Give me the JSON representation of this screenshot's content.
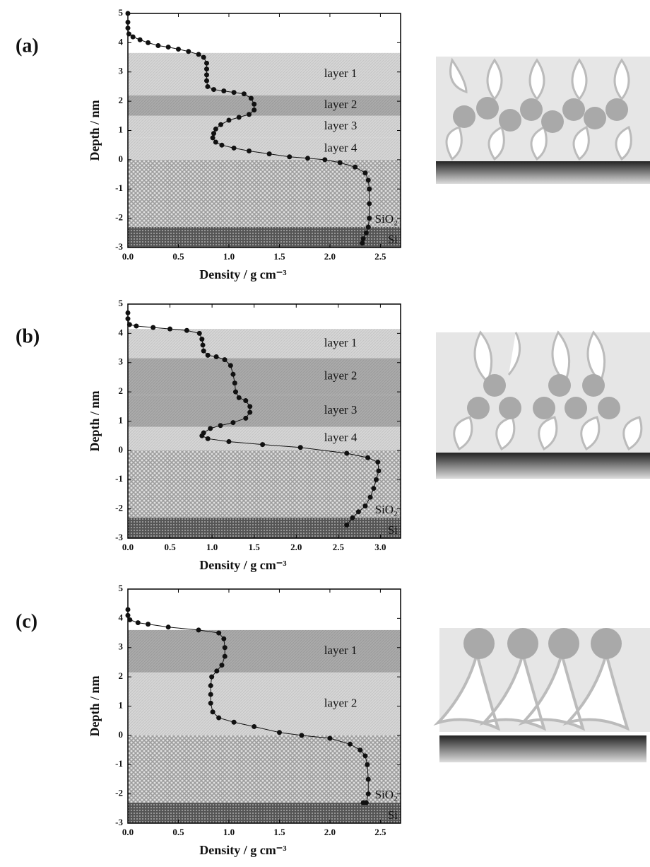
{
  "chart_data": [
    {
      "type": "line",
      "panel_label": "(a)",
      "x_label": "Density / g cm⁻³",
      "y_label": "Depth / nm",
      "xlim": [
        0,
        2.7
      ],
      "ylim": [
        -3,
        5
      ],
      "xticks": [
        {
          "value": 0,
          "label": "0.0"
        },
        0.5,
        {
          "value": 1,
          "label": "1.0"
        },
        1.5,
        {
          "value": 2,
          "label": "2.0"
        },
        2.5
      ],
      "yticks": [
        -3,
        -2,
        -1,
        0,
        1,
        2,
        3,
        4,
        5
      ],
      "regions": [
        {
          "label": "layer 1",
          "ylim": [
            2.2,
            3.65
          ],
          "fill": "light"
        },
        {
          "label": "layer 2",
          "ylim": [
            1.5,
            2.2
          ],
          "fill": "dark"
        },
        {
          "label": "layer 3",
          "ylim": [
            0.75,
            1.5
          ],
          "fill": "light"
        },
        {
          "label": "layer 4",
          "ylim": [
            0,
            0.75
          ],
          "fill": "light"
        },
        {
          "label": "SiO₂",
          "ylim": [
            -2.3,
            0
          ],
          "fill": "dots"
        },
        {
          "label": "Si",
          "ylim": [
            -3,
            -2.3
          ],
          "fill": "dense-dots"
        }
      ],
      "series": [
        {
          "color": "#111111",
          "x": [
            0,
            0,
            0,
            0.01,
            0.05,
            0.12,
            0.2,
            0.3,
            0.4,
            0.5,
            0.6,
            0.7,
            0.75,
            0.78,
            0.78,
            0.78,
            0.78,
            0.79,
            0.85,
            0.95,
            1.05,
            1.15,
            1.22,
            1.25,
            1.25,
            1.2,
            1.1,
            1.0,
            0.92,
            0.87,
            0.85,
            0.84,
            0.87,
            0.93,
            1.05,
            1.2,
            1.4,
            1.6,
            1.78,
            1.95,
            2.1,
            2.25,
            2.35,
            2.38,
            2.39,
            2.39,
            2.39,
            2.38,
            2.36,
            2.33,
            2.32
          ],
          "values": [
            5,
            4.7,
            4.5,
            4.3,
            4.2,
            4.1,
            4.0,
            3.9,
            3.85,
            3.78,
            3.7,
            3.6,
            3.5,
            3.3,
            3.1,
            2.9,
            2.7,
            2.5,
            2.4,
            2.35,
            2.3,
            2.25,
            2.1,
            1.9,
            1.7,
            1.55,
            1.45,
            1.35,
            1.2,
            1.05,
            0.9,
            0.75,
            0.6,
            0.5,
            0.4,
            0.3,
            0.2,
            0.1,
            0.05,
            0,
            -0.1,
            -0.25,
            -0.45,
            -0.7,
            -1.0,
            -1.5,
            -2.0,
            -2.3,
            -2.5,
            -2.7,
            -2.85
          ]
        }
      ]
    },
    {
      "type": "line",
      "panel_label": "(b)",
      "x_label": "Density / g cm⁻³",
      "y_label": "Depth / nm",
      "xlim": [
        0,
        3.24
      ],
      "ylim": [
        -3,
        5
      ],
      "xticks": [
        {
          "value": 0,
          "label": "0.0"
        },
        0.5,
        {
          "value": 1,
          "label": "1.0"
        },
        1.5,
        {
          "value": 2,
          "label": "2.0"
        },
        2.5,
        {
          "value": 3,
          "label": "3.0"
        }
      ],
      "yticks": [
        -3,
        -2,
        -1,
        0,
        1,
        2,
        3,
        4,
        5
      ],
      "regions": [
        {
          "label": "layer 1",
          "ylim": [
            3.15,
            4.15
          ],
          "fill": "light"
        },
        {
          "label": "layer 2",
          "ylim": [
            1.9,
            3.15
          ],
          "fill": "dark"
        },
        {
          "label": "layer 3",
          "ylim": [
            0.8,
            1.9
          ],
          "fill": "dark"
        },
        {
          "label": "layer 4",
          "ylim": [
            0,
            0.8
          ],
          "fill": "light"
        },
        {
          "label": "SiO₂",
          "ylim": [
            -2.3,
            0
          ],
          "fill": "dots"
        },
        {
          "label": "Si",
          "ylim": [
            -3,
            -2.3
          ],
          "fill": "dense-dots"
        }
      ],
      "series": [
        {
          "color": "#111111",
          "x": [
            0,
            0,
            0.02,
            0.1,
            0.3,
            0.5,
            0.7,
            0.85,
            0.88,
            0.89,
            0.9,
            0.95,
            1.05,
            1.15,
            1.22,
            1.25,
            1.27,
            1.28,
            1.32,
            1.4,
            1.45,
            1.45,
            1.4,
            1.25,
            1.1,
            0.98,
            0.9,
            0.88,
            0.95,
            1.2,
            1.6,
            2.05,
            2.6,
            2.85,
            2.97,
            2.98,
            2.95,
            2.92,
            2.88,
            2.82,
            2.74,
            2.67,
            2.6
          ],
          "values": [
            4.7,
            4.5,
            4.3,
            4.25,
            4.2,
            4.15,
            4.1,
            4.0,
            3.8,
            3.6,
            3.4,
            3.25,
            3.2,
            3.1,
            2.9,
            2.6,
            2.3,
            2.0,
            1.8,
            1.7,
            1.5,
            1.3,
            1.1,
            0.95,
            0.85,
            0.75,
            0.6,
            0.5,
            0.4,
            0.3,
            0.2,
            0.1,
            -0.1,
            -0.25,
            -0.4,
            -0.7,
            -1.0,
            -1.3,
            -1.6,
            -1.9,
            -2.1,
            -2.3,
            -2.55
          ]
        }
      ]
    },
    {
      "type": "line",
      "panel_label": "(c)",
      "x_label": "Density / g cm⁻³",
      "y_label": "Depth / nm",
      "xlim": [
        0,
        2.7
      ],
      "ylim": [
        -3,
        5
      ],
      "xticks": [
        {
          "value": 0,
          "label": "0.0"
        },
        0.5,
        {
          "value": 1,
          "label": "1.0"
        },
        1.5,
        {
          "value": 2,
          "label": "2.0"
        },
        2.5
      ],
      "yticks": [
        -3,
        -2,
        -1,
        0,
        1,
        2,
        3,
        4,
        5
      ],
      "regions": [
        {
          "label": "layer 1",
          "ylim": [
            2.15,
            3.6
          ],
          "fill": "dark"
        },
        {
          "label": "layer 2",
          "ylim": [
            0,
            2.15
          ],
          "fill": "light"
        },
        {
          "label": "SiO₂",
          "ylim": [
            -2.3,
            0
          ],
          "fill": "dots"
        },
        {
          "label": "Si",
          "ylim": [
            -3,
            -2.3
          ],
          "fill": "dense-dots"
        }
      ],
      "series": [
        {
          "color": "#111111",
          "x": [
            0,
            0,
            0.02,
            0.1,
            0.2,
            0.4,
            0.7,
            0.9,
            0.95,
            0.96,
            0.96,
            0.93,
            0.88,
            0.83,
            0.82,
            0.82,
            0.82,
            0.84,
            0.9,
            1.05,
            1.25,
            1.5,
            1.72,
            2.0,
            2.2,
            2.3,
            2.35,
            2.37,
            2.38,
            2.38,
            2.36,
            2.33
          ],
          "values": [
            4.3,
            4.1,
            3.95,
            3.85,
            3.8,
            3.7,
            3.6,
            3.5,
            3.3,
            3.0,
            2.7,
            2.4,
            2.2,
            2.0,
            1.7,
            1.4,
            1.1,
            0.8,
            0.6,
            0.45,
            0.3,
            0.1,
            0,
            -0.1,
            -0.3,
            -0.5,
            -0.7,
            -1.0,
            -1.5,
            -2.0,
            -2.3,
            -2.3
          ]
        }
      ]
    }
  ]
}
